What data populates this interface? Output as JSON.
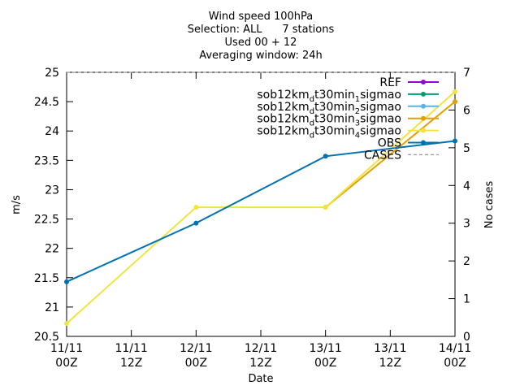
{
  "chart_data": {
    "type": "line",
    "title_lines": [
      "Wind speed 100hPa",
      "Selection: ALL      7 stations",
      "Used 00 + 12",
      "Averaging window: 24h"
    ],
    "xlabel": "Date",
    "ylabel": "m/s",
    "y2label": "No cases",
    "x_ticks": [
      {
        "t": 0,
        "line1": "11/11",
        "line2": "00Z"
      },
      {
        "t": 12,
        "line1": "11/11",
        "line2": "12Z"
      },
      {
        "t": 24,
        "line1": "12/11",
        "line2": "00Z"
      },
      {
        "t": 36,
        "line1": "12/11",
        "line2": "12Z"
      },
      {
        "t": 48,
        "line1": "13/11",
        "line2": "00Z"
      },
      {
        "t": 60,
        "line1": "13/11",
        "line2": "12Z"
      },
      {
        "t": 72,
        "line1": "14/11",
        "line2": "00Z"
      }
    ],
    "xlim": [
      0,
      72
    ],
    "ylim": [
      20.5,
      25
    ],
    "y_ticks": [
      20.5,
      21,
      21.5,
      22,
      22.5,
      23,
      23.5,
      24,
      24.5,
      25
    ],
    "y2lim": [
      0,
      7
    ],
    "y2_ticks": [
      0,
      1,
      2,
      3,
      4,
      5,
      6,
      7
    ],
    "grid": false,
    "legend_position": "top-right",
    "series": [
      {
        "name": "REF",
        "color": "#9400d3",
        "axis": "y",
        "x": [],
        "values": []
      },
      {
        "name": "sob12km_d t30min_1 sigmao",
        "label_parts": [
          "sob12km",
          "d",
          "t30min",
          "1",
          "sigmao"
        ],
        "color": "#009e73",
        "axis": "y",
        "x": [],
        "values": []
      },
      {
        "name": "sob12km_d t30min_2 sigmao",
        "label_parts": [
          "sob12km",
          "d",
          "t30min",
          "2",
          "sigmao"
        ],
        "color": "#56b4e9",
        "axis": "y",
        "x": [],
        "values": []
      },
      {
        "name": "sob12km_d t30min_3 sigmao",
        "label_parts": [
          "sob12km",
          "d",
          "t30min",
          "3",
          "sigmao"
        ],
        "color": "#e69f00",
        "axis": "y",
        "x": [
          48,
          72
        ],
        "values": [
          22.7,
          24.5
        ]
      },
      {
        "name": "sob12km_d t30min_4 sigmao",
        "label_parts": [
          "sob12km",
          "d",
          "t30min",
          "4",
          "sigmao"
        ],
        "color": "#f0e442",
        "axis": "y",
        "x": [
          0,
          24,
          48,
          72
        ],
        "values": [
          20.72,
          22.7,
          22.7,
          24.67
        ]
      },
      {
        "name": "OBS",
        "color": "#0072b2",
        "axis": "y",
        "x": [
          0,
          24,
          48,
          72
        ],
        "values": [
          21.43,
          22.43,
          23.57,
          23.83
        ]
      },
      {
        "name": "CASES",
        "color": "#999999",
        "axis": "y2",
        "dashed": true,
        "x": [
          0,
          72
        ],
        "values": [
          7,
          7
        ]
      }
    ]
  }
}
